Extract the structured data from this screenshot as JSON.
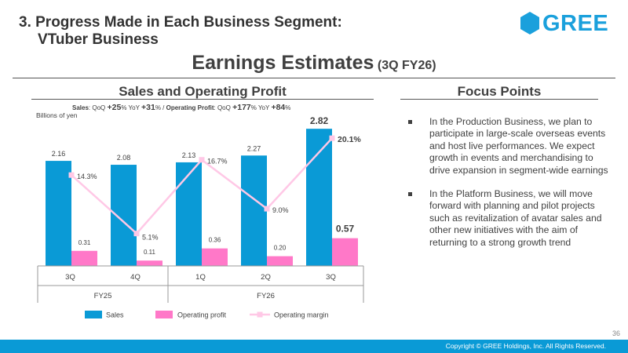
{
  "header": {
    "section_line1": "3. Progress Made in Each Business Segment:",
    "section_line2": "VTuber Business",
    "logo_text": "GREE",
    "logo_color": "#1aa0dc",
    "logo_icon": "hexagon-icon",
    "title": "Earnings Estimates",
    "title_suffix": "(3Q FY26)"
  },
  "left_panel": {
    "heading": "Sales and Operating Profit",
    "growth": {
      "sales_label": "Sales",
      "qoq_label": "QoQ",
      "sales_qoq": "+25",
      "yoy_label": "YoY",
      "sales_yoy": "+31",
      "percent": "%",
      "separator": " / ",
      "op_label": "Operating Profit",
      "op_qoq": "+177",
      "op_yoy": "+84"
    },
    "unit": "Billions of yen"
  },
  "chart_data": {
    "type": "bar",
    "categories": [
      "3Q",
      "4Q",
      "1Q",
      "2Q",
      "3Q"
    ],
    "groups": [
      {
        "label": "FY25",
        "span": 2
      },
      {
        "label": "FY26",
        "span": 3
      }
    ],
    "series": [
      {
        "name": "Sales",
        "type": "bar",
        "color": "#0a9ad6",
        "values": [
          2.16,
          2.08,
          2.13,
          2.27,
          2.82
        ],
        "labels": [
          "2.16",
          "2.08",
          "2.13",
          "2.27",
          "2.82"
        ]
      },
      {
        "name": "Operating profit",
        "type": "bar",
        "color": "#ff78c8",
        "values": [
          0.31,
          0.11,
          0.36,
          0.2,
          0.57
        ],
        "labels": [
          "0.31",
          "0.11",
          "0.36",
          "0.20",
          "0.57"
        ]
      },
      {
        "name": "Operating margin",
        "type": "line",
        "color": "#ffc8e6",
        "values": [
          14.3,
          5.1,
          16.7,
          9.0,
          20.1
        ],
        "labels": [
          "14.3%",
          "5.1%",
          "16.7%",
          "9.0%",
          "20.1%"
        ]
      }
    ],
    "highlight_last": true,
    "legend_position": "bottom",
    "grid": false
  },
  "focus_points": {
    "heading": "Focus Points",
    "items": [
      "In the Production Business, we plan to participate in large-scale overseas events and host live performances. We expect growth in events and merchandising to drive expansion in segment-wide earnings",
      "In the Platform Business, we will move forward with planning and pilot projects such as revitalization of avatar sales and other new initiatives with the aim of returning to a strong growth trend"
    ]
  },
  "footer": {
    "page_number": "36",
    "copyright": "Copyright © GREE Holdings, Inc. All Rights Reserved.",
    "bar_color": "#0a9ad6"
  }
}
